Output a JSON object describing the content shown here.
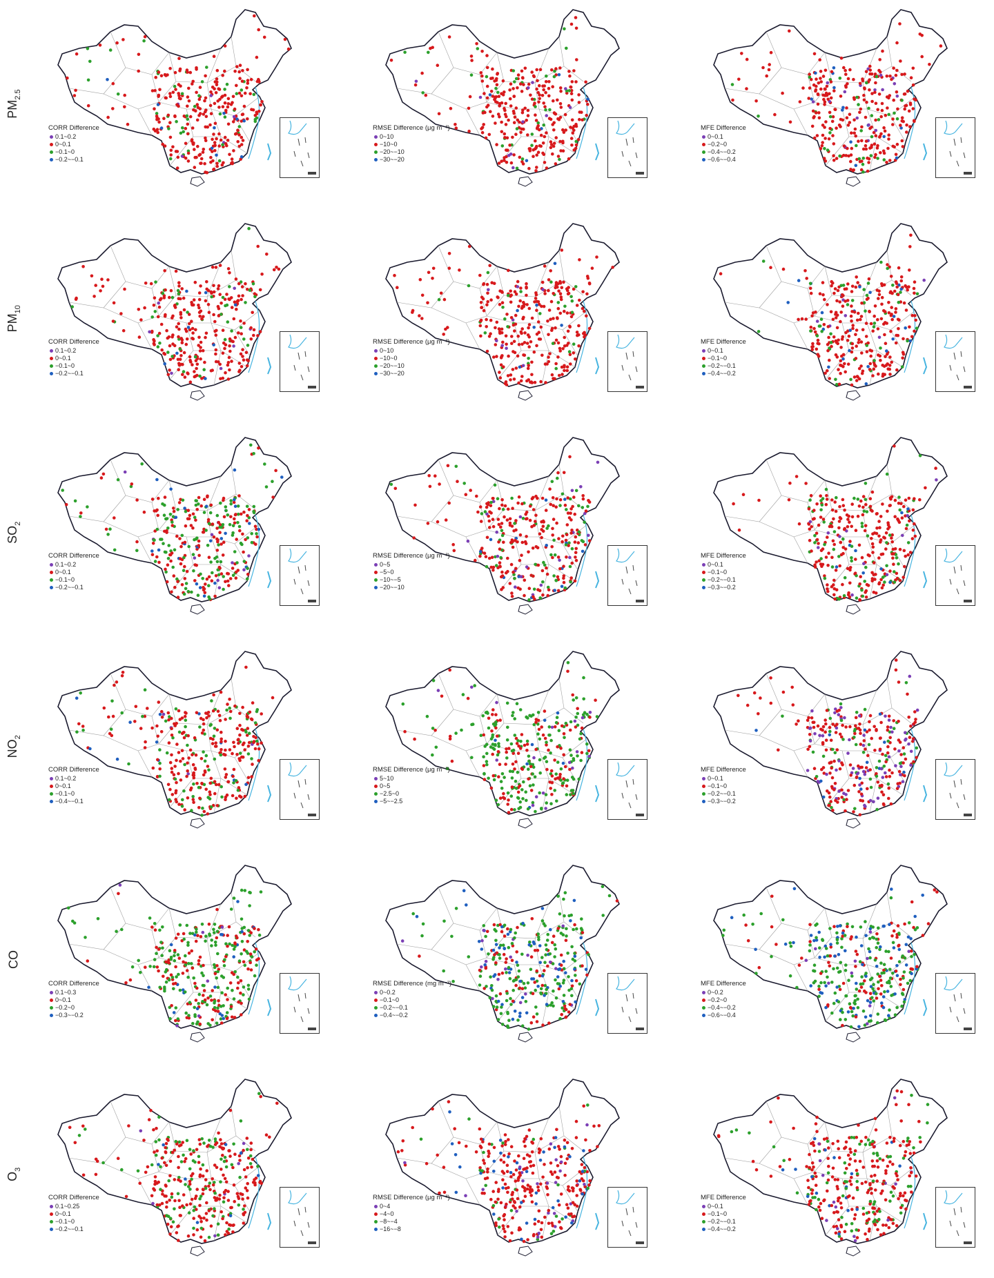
{
  "colors": {
    "cat1": "#7b3fb5",
    "cat2": "#d7191c",
    "cat3": "#2ca02c",
    "cat4": "#1f5fbf",
    "border": "#1a1a2e",
    "province": "#a0a0a0",
    "sea": "#46b4e0"
  },
  "rows": [
    {
      "species": "PM",
      "sub": "2.5"
    },
    {
      "species": "PM",
      "sub": "10"
    },
    {
      "species": "SO",
      "sub": "2"
    },
    {
      "species": "NO",
      "sub": "2"
    },
    {
      "species": "CO",
      "sub": ""
    },
    {
      "species": "O",
      "sub": "3"
    }
  ],
  "panels": [
    [
      {
        "metric": "CORR",
        "title": "CORR Difference",
        "items": [
          "0.1~0.2",
          "0~0.1",
          "−0.1~0",
          "−0.2~−0.1"
        ],
        "mix": [
          0.02,
          0.82,
          0.12,
          0.04
        ]
      },
      {
        "metric": "RMSE",
        "title": "RMSE Difference  (μg m⁻³)",
        "items": [
          "0~10",
          "−10~0",
          "−20~−10",
          "−30~−20"
        ],
        "mix": [
          0.02,
          0.86,
          0.1,
          0.02
        ]
      },
      {
        "metric": "MFE",
        "title": "MFE Difference",
        "items": [
          "0~0.1",
          "−0.2~0",
          "−0.4~−0.2",
          "−0.6~−0.4"
        ],
        "mix": [
          0.06,
          0.8,
          0.1,
          0.04
        ]
      }
    ],
    [
      {
        "metric": "CORR",
        "title": "CORR Difference",
        "items": [
          "0.1~0.2",
          "0~0.1",
          "−0.1~0",
          "−0.2~−0.1"
        ],
        "mix": [
          0.02,
          0.84,
          0.11,
          0.03
        ]
      },
      {
        "metric": "RMSE",
        "title": "RMSE Difference  (μg m⁻³)",
        "items": [
          "0~10",
          "−10~0",
          "−20~−10",
          "−30~−20"
        ],
        "mix": [
          0.02,
          0.86,
          0.1,
          0.02
        ]
      },
      {
        "metric": "MFE",
        "title": "MFE Difference",
        "items": [
          "0~0.1",
          "−0.1~0",
          "−0.2~−0.1",
          "−0.4~−0.2"
        ],
        "mix": [
          0.02,
          0.78,
          0.14,
          0.06
        ]
      }
    ],
    [
      {
        "metric": "CORR",
        "title": "CORR Difference",
        "items": [
          "0.1~0.2",
          "0~0.1",
          "−0.1~0",
          "−0.2~−0.1"
        ],
        "mix": [
          0.03,
          0.55,
          0.36,
          0.06
        ]
      },
      {
        "metric": "RMSE",
        "title": "RMSE Difference  (μg m⁻³)",
        "items": [
          "0~5",
          "−5~0",
          "−10~−5",
          "−20~−10"
        ],
        "mix": [
          0.04,
          0.7,
          0.2,
          0.06
        ]
      },
      {
        "metric": "MFE",
        "title": "MFE Difference",
        "items": [
          "0~0.1",
          "−0.1~0",
          "−0.2~−0.1",
          "−0.3~−0.2"
        ],
        "mix": [
          0.03,
          0.7,
          0.24,
          0.03
        ]
      }
    ],
    [
      {
        "metric": "CORR",
        "title": "CORR Difference",
        "items": [
          "0.1~0.2",
          "0~0.1",
          "−0.1~0",
          "−0.4~−0.1"
        ],
        "mix": [
          0.02,
          0.72,
          0.22,
          0.04
        ]
      },
      {
        "metric": "RMSE",
        "title": "RMSE Difference  (μg m⁻³)",
        "items": [
          "5~10",
          "0~5",
          "−2.5~0",
          "−5~−2.5"
        ],
        "mix": [
          0.05,
          0.35,
          0.56,
          0.04
        ]
      },
      {
        "metric": "MFE",
        "title": "MFE Difference",
        "items": [
          "0~0.1",
          "−0.1~0",
          "−0.2~−0.1",
          "−0.3~−0.2"
        ],
        "mix": [
          0.2,
          0.62,
          0.15,
          0.03
        ]
      }
    ],
    [
      {
        "metric": "CORR",
        "title": "CORR Difference",
        "items": [
          "0.1~0.3",
          "0~0.1",
          "−0.2~0",
          "−0.3~−0.2"
        ],
        "mix": [
          0.03,
          0.36,
          0.55,
          0.06
        ]
      },
      {
        "metric": "RMSE",
        "title": "RMSE Difference  (mg m⁻³)",
        "items": [
          "0~0.2",
          "−0.1~0",
          "−0.2~−0.1",
          "−0.4~−0.2"
        ],
        "mix": [
          0.06,
          0.22,
          0.5,
          0.22
        ]
      },
      {
        "metric": "MFE",
        "title": "MFE Difference",
        "items": [
          "0~0.2",
          "−0.2~0",
          "−0.4~−0.2",
          "−0.6~−0.4"
        ],
        "mix": [
          0.03,
          0.25,
          0.5,
          0.22
        ]
      }
    ],
    [
      {
        "metric": "CORR",
        "title": "CORR Difference",
        "items": [
          "0.1~0.25",
          "0~0.1",
          "−0.1~0",
          "−0.2~−0.1"
        ],
        "mix": [
          0.02,
          0.66,
          0.27,
          0.05
        ]
      },
      {
        "metric": "RMSE",
        "title": "RMSE Difference  (μg m⁻³)",
        "items": [
          "0~4",
          "−4~0",
          "−8~−4",
          "−16~−8"
        ],
        "mix": [
          0.08,
          0.72,
          0.12,
          0.08
        ]
      },
      {
        "metric": "MFE",
        "title": "MFE Difference",
        "items": [
          "0~0.1",
          "−0.1~0",
          "−0.2~−0.1",
          "−0.4~−0.2"
        ],
        "mix": [
          0.04,
          0.7,
          0.22,
          0.04
        ]
      }
    ]
  ]
}
